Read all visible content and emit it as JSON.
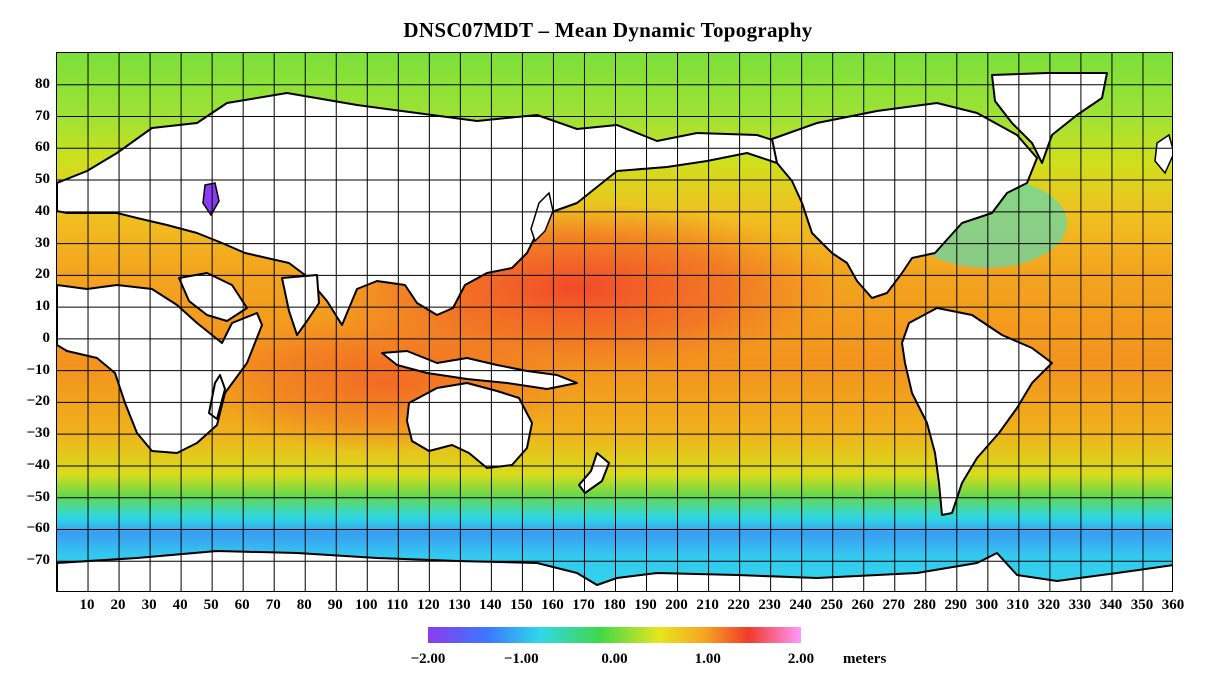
{
  "title": "DNSC07MDT – Mean Dynamic Topography",
  "y_axis": {
    "ticks": [
      "80",
      "70",
      "60",
      "50",
      "40",
      "30",
      "20",
      "10",
      "0",
      "−10",
      "−20",
      "−30",
      "−40",
      "−50",
      "−60",
      "−70"
    ]
  },
  "x_axis": {
    "ticks": [
      "10",
      "20",
      "30",
      "40",
      "50",
      "60",
      "70",
      "80",
      "90",
      "100",
      "110",
      "120",
      "130",
      "140",
      "150",
      "160",
      "170",
      "180",
      "190",
      "200",
      "210",
      "220",
      "230",
      "240",
      "250",
      "260",
      "270",
      "280",
      "290",
      "300",
      "310",
      "320",
      "330",
      "340",
      "350",
      "360"
    ]
  },
  "colorbar": {
    "ticks": [
      "−2.00",
      "−1.00",
      "0.00",
      "1.00",
      "2.00"
    ],
    "units": "meters",
    "range": [
      -2.0,
      2.0
    ],
    "colors": [
      "#8a3cf0",
      "#3a78ff",
      "#2fd8e8",
      "#3fd84a",
      "#e6e61e",
      "#f5a623",
      "#f03a2a",
      "#ff99ff"
    ]
  },
  "map": {
    "lon_range": [
      0,
      360
    ],
    "lat_range": [
      -80,
      90
    ],
    "grid_spacing_deg": 10,
    "land_color": "#ffffff",
    "grid_color": "#000000"
  }
}
